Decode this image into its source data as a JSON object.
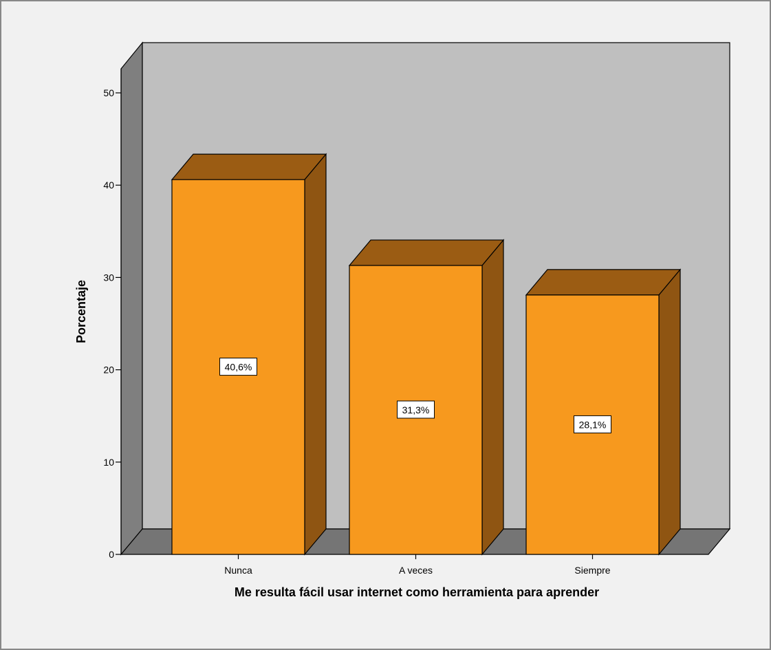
{
  "chart_data": {
    "type": "bar",
    "categories": [
      "Nunca",
      "A veces",
      "Siempre"
    ],
    "values": [
      40.6,
      31.3,
      28.1
    ],
    "data_labels": [
      "40,6%",
      "31,3%",
      "28,1%"
    ],
    "title": "",
    "xlabel": "Me resulta fácil usar internet como herramienta para aprender",
    "ylabel": "Porcentaje",
    "ylim": [
      0,
      50
    ],
    "yticks": [
      0,
      10,
      20,
      30,
      40,
      50
    ],
    "grid": false,
    "legend": "none",
    "style": "3d",
    "colors": {
      "bar_front": "#f7991e",
      "bar_top": "#9b5c13",
      "bar_side": "#8f5512",
      "back_wall": "#bfbfbf",
      "side_wall": "#7f7f7f",
      "floor": "#757575",
      "chart_background": "#f1f1f1",
      "frame": "#888888"
    }
  }
}
